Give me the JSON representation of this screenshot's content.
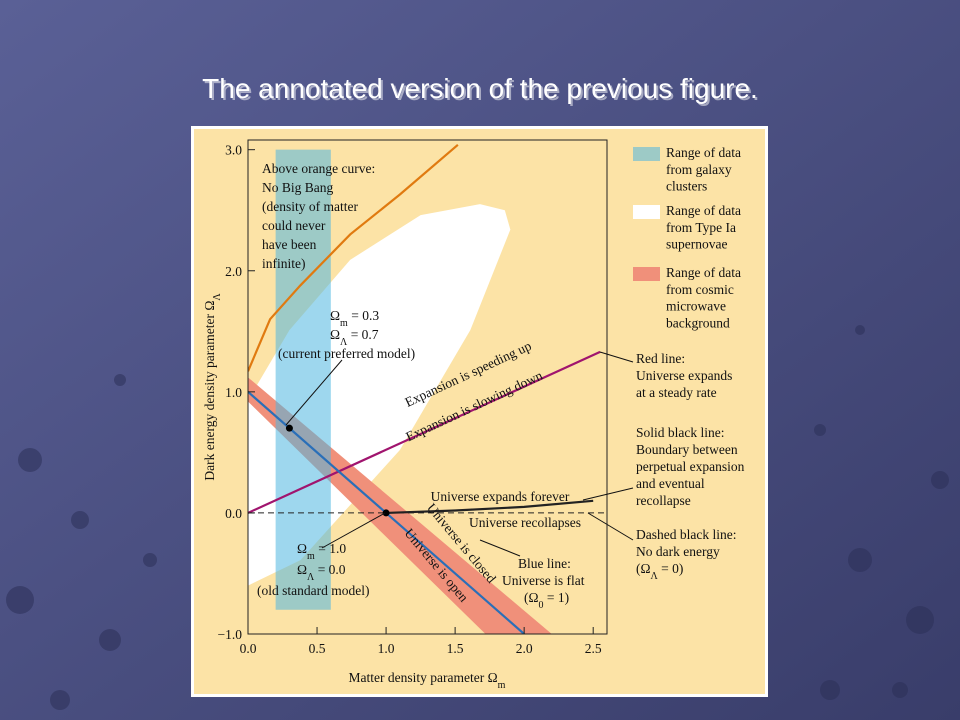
{
  "slide_title": "The annotated version of the previous figure.",
  "chart_data": {
    "type": "region-diagram",
    "x_label": [
      "Matter density parameter Ω",
      "m"
    ],
    "y_label": [
      "Dark energy density parameter Ω",
      "Λ"
    ],
    "xlim": [
      0,
      2.6
    ],
    "ylim": [
      -1,
      3.08
    ],
    "xticks": [
      {
        "value": 0,
        "label": "0.0"
      },
      {
        "value": 0.5,
        "label": "0.5"
      },
      {
        "value": 1,
        "label": "1.0"
      },
      {
        "value": 1.5,
        "label": "1.5"
      },
      {
        "value": 2,
        "label": "2.0"
      },
      {
        "value": 2.5,
        "label": "2.5"
      }
    ],
    "yticks": [
      {
        "value": -1,
        "label": "−1.0"
      },
      {
        "value": 0,
        "label": "0.0"
      },
      {
        "value": 1,
        "label": "1.0"
      },
      {
        "value": 2,
        "label": "2.0"
      },
      {
        "value": 3,
        "label": "3.0"
      }
    ],
    "regions": [
      {
        "name": [
          "Range of data",
          "from galaxy",
          "clusters"
        ],
        "color": "#4fb6e0",
        "opacity": 0.55,
        "x": [
          0.2,
          0.6,
          0.6,
          0.2
        ],
        "y": [
          -0.8,
          -0.8,
          3.0,
          3.0
        ]
      },
      {
        "name": [
          "Range of data",
          "from Type Ia",
          "supernovae"
        ],
        "color": "#ffffff",
        "x": [
          0,
          0.38,
          1.1,
          1.61,
          1.9,
          1.86,
          1.68,
          1.25,
          0.74,
          0.3,
          0
        ],
        "y": [
          -0.6,
          -0.39,
          0.52,
          1.51,
          2.34,
          2.5,
          2.55,
          2.46,
          2.09,
          1.51,
          0.93
        ]
      },
      {
        "name": [
          "Range of data",
          "from cosmic",
          "microwave",
          "background"
        ],
        "color": "#f0907a",
        "x": [
          0,
          2.2,
          1.72,
          0
        ],
        "y": [
          1.12,
          -1.0,
          -1.0,
          0.92
        ]
      }
    ],
    "lines": [
      {
        "color": "#e07a10",
        "x": [
          0,
          0.16,
          0.38,
          0.74,
          1.1,
          1.52
        ],
        "y": [
          1.17,
          1.6,
          1.88,
          2.3,
          2.63,
          3.04
        ]
      },
      {
        "color": "#a0146e",
        "x": [
          0,
          2.55
        ],
        "y": [
          0,
          1.33
        ]
      },
      {
        "color": "#2a6fb8",
        "x": [
          0,
          2.0
        ],
        "y": [
          1.0,
          -1.0
        ]
      },
      {
        "color": "#222222",
        "dashed": true,
        "x": [
          0,
          2.6
        ],
        "y": [
          0,
          0
        ]
      },
      {
        "color": "#222222",
        "x": [
          1.0,
          1.5,
          2.0,
          2.5
        ],
        "y": [
          0,
          0.02,
          0.05,
          0.1
        ]
      }
    ],
    "points": {
      "color": "#000000",
      "x": [
        0.3,
        1.0
      ],
      "y": [
        0.7,
        0.0
      ]
    },
    "annotations": [
      [
        [
          "Above orange curve:"
        ],
        [
          "No Big Bang"
        ],
        [
          "(density of matter"
        ],
        [
          "could never"
        ],
        [
          "have been"
        ],
        [
          "infinite)"
        ]
      ],
      [
        [
          "Ω",
          "m",
          " = 0.3"
        ],
        [
          "Ω",
          "Λ",
          " = 0.7"
        ],
        [
          "(current preferred model)"
        ]
      ],
      [
        [
          "Ω",
          "m",
          " = 1.0"
        ],
        [
          "Ω",
          "Λ",
          " = 0.0"
        ],
        [
          "(old standard model)"
        ]
      ],
      [
        [
          "Blue line:"
        ],
        [
          "Universe is flat"
        ],
        [
          "(Ω",
          "0",
          " = 1)"
        ]
      ],
      [
        [
          "Red line:"
        ],
        [
          "Universe expands"
        ],
        [
          "at a steady rate"
        ]
      ],
      [
        [
          "Solid black line:"
        ],
        [
          "Boundary between"
        ],
        [
          "perpetual expansion"
        ],
        [
          "and eventual"
        ],
        [
          "recollapse"
        ]
      ],
      [
        [
          "Dashed black line:"
        ],
        [
          "No dark energy"
        ],
        [
          "(Ω",
          "Λ",
          " = 0)"
        ]
      ]
    ],
    "line_labels": [
      "Expansion is speeding up",
      "Expansion is slowing down",
      "Universe expands forever",
      "Universe recollapses",
      "Universe is closed",
      "Universe is open"
    ]
  }
}
